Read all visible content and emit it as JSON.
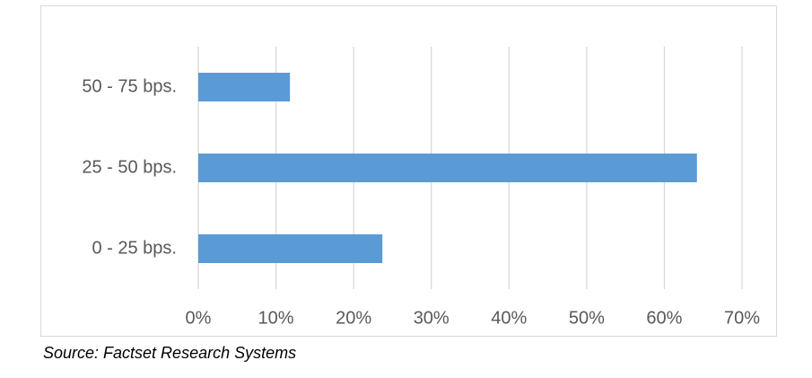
{
  "chart_data": {
    "type": "bar",
    "orientation": "horizontal",
    "categories": [
      "0 - 25 bps.",
      "25 - 50 bps.",
      "50 - 75 bps."
    ],
    "values": [
      23.7,
      64.2,
      11.8
    ],
    "color": "#5b9bd5",
    "xlim": [
      0,
      70
    ],
    "xticks": [
      {
        "value": 0,
        "label": "0%"
      },
      {
        "value": 10,
        "label": "10%"
      },
      {
        "value": 20,
        "label": "20%"
      },
      {
        "value": 30,
        "label": "30%"
      },
      {
        "value": 40,
        "label": "40%"
      },
      {
        "value": 50,
        "label": "50%"
      },
      {
        "value": 60,
        "label": "60%"
      },
      {
        "value": 70,
        "label": "70%"
      }
    ],
    "grid": true,
    "source": "Source: Factset Research Systems"
  }
}
